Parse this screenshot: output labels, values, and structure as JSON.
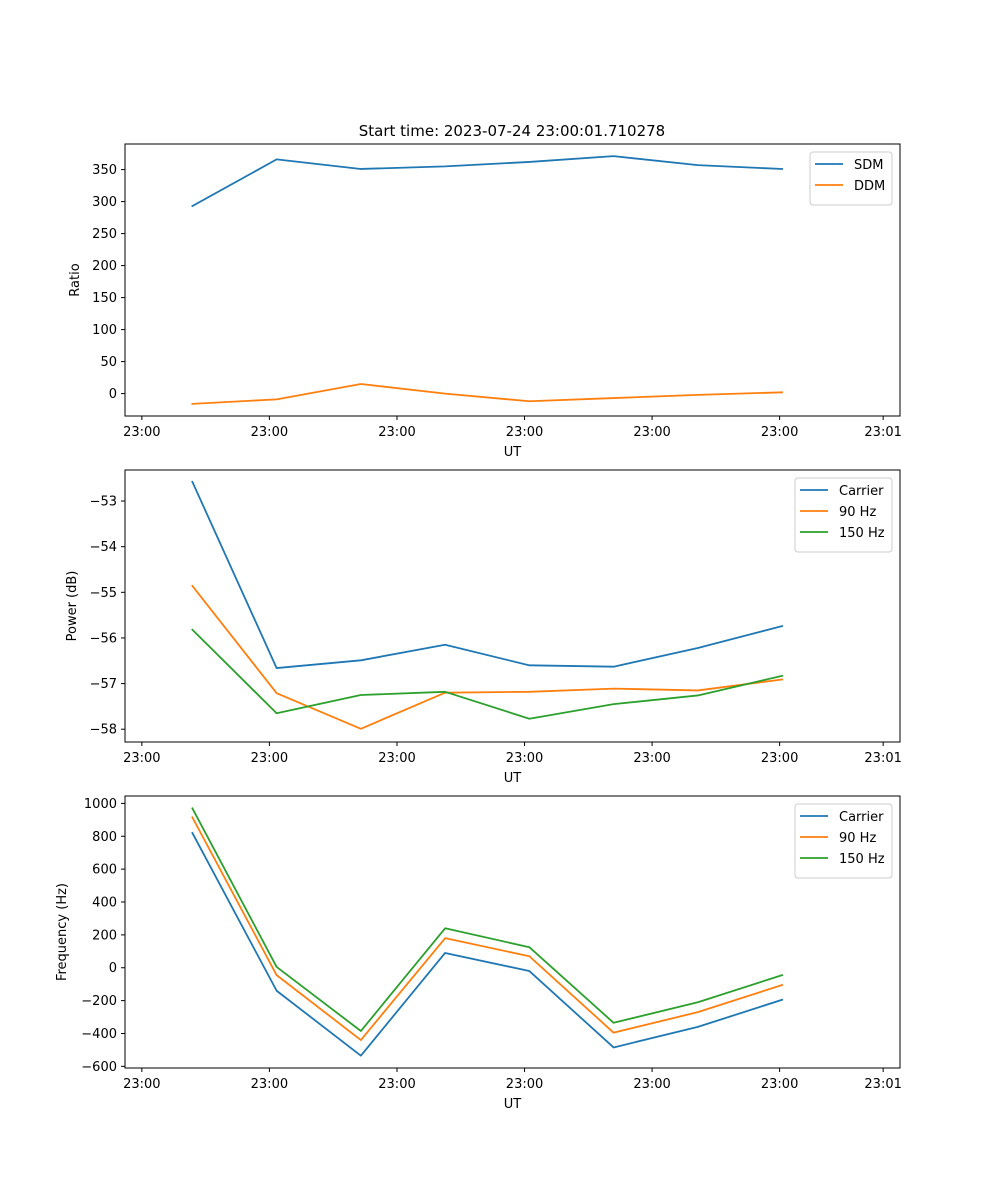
{
  "figure_title": "Start time: 2023-07-24 23:00:01.710278",
  "colors": {
    "blue": "#1f77b4",
    "orange": "#ff7f0e",
    "green": "#2ca02c"
  },
  "chart_data": [
    {
      "type": "line",
      "title": "Start time: 2023-07-24 23:00:01.710278",
      "xlabel": "UT",
      "ylabel": "Ratio",
      "x": [
        1,
        2,
        3,
        4,
        5,
        6,
        7,
        8
      ],
      "xlim": [
        0.2,
        9.4
      ],
      "xticks": [
        0.4,
        1.914,
        3.429,
        4.943,
        6.457,
        7.971,
        9.2
      ],
      "xticklabels": [
        "23:00",
        "23:00",
        "23:00",
        "23:00",
        "23:00",
        "23:00",
        "23:01"
      ],
      "ylim": [
        -35,
        390
      ],
      "yticks": [
        0,
        50,
        100,
        150,
        200,
        250,
        300,
        350
      ],
      "legend": "top-right",
      "series": [
        {
          "name": "SDM",
          "color": "#1f77b4",
          "values": [
            293,
            366,
            351,
            355,
            362,
            371,
            357,
            351
          ]
        },
        {
          "name": "DDM",
          "color": "#ff7f0e",
          "values": [
            -16,
            -9,
            15,
            0,
            -12,
            -7,
            -2,
            2
          ]
        }
      ]
    },
    {
      "type": "line",
      "title": "",
      "xlabel": "UT",
      "ylabel": "Power (dB)",
      "x": [
        1,
        2,
        3,
        4,
        5,
        6,
        7,
        8
      ],
      "xlim": [
        0.2,
        9.4
      ],
      "xticks": [
        0.4,
        1.914,
        3.429,
        4.943,
        6.457,
        7.971,
        9.2
      ],
      "xticklabels": [
        "23:00",
        "23:00",
        "23:00",
        "23:00",
        "23:00",
        "23:00",
        "23:01"
      ],
      "ylim": [
        -58.28,
        -52.32
      ],
      "yticks": [
        -58,
        -57,
        -56,
        -55,
        -54,
        -53
      ],
      "ytickformat": "minus",
      "legend": "top-right",
      "series": [
        {
          "name": "Carrier",
          "color": "#1f77b4",
          "values": [
            -52.58,
            -56.66,
            -56.49,
            -56.15,
            -56.6,
            -56.63,
            -56.22,
            -55.74
          ]
        },
        {
          "name": "90 Hz",
          "color": "#ff7f0e",
          "values": [
            -54.86,
            -57.21,
            -57.99,
            -57.2,
            -57.18,
            -57.11,
            -57.15,
            -56.91
          ]
        },
        {
          "name": "150 Hz",
          "color": "#2ca02c",
          "values": [
            -55.82,
            -57.65,
            -57.25,
            -57.18,
            -57.77,
            -57.45,
            -57.26,
            -56.83
          ]
        }
      ]
    },
    {
      "type": "line",
      "title": "",
      "xlabel": "UT",
      "ylabel": "Frequency (Hz)",
      "x": [
        1,
        2,
        3,
        4,
        5,
        6,
        7,
        8
      ],
      "xlim": [
        0.2,
        9.4
      ],
      "xticks": [
        0.4,
        1.914,
        3.429,
        4.943,
        6.457,
        7.971,
        9.2
      ],
      "xticklabels": [
        "23:00",
        "23:00",
        "23:00",
        "23:00",
        "23:00",
        "23:00",
        "23:01"
      ],
      "ylim": [
        -610,
        1045
      ],
      "yticks": [
        -600,
        -400,
        -200,
        0,
        200,
        400,
        600,
        800,
        1000
      ],
      "ytickformat": "minus",
      "legend": "top-right",
      "series": [
        {
          "name": "Carrier",
          "color": "#1f77b4",
          "values": [
            820,
            -140,
            -535,
            90,
            -20,
            -485,
            -360,
            -195
          ]
        },
        {
          "name": "90 Hz",
          "color": "#ff7f0e",
          "values": [
            915,
            -45,
            -440,
            180,
            70,
            -395,
            -270,
            -105
          ]
        },
        {
          "name": "150 Hz",
          "color": "#2ca02c",
          "values": [
            970,
            5,
            -385,
            240,
            125,
            -335,
            -210,
            -45
          ]
        }
      ]
    }
  ]
}
